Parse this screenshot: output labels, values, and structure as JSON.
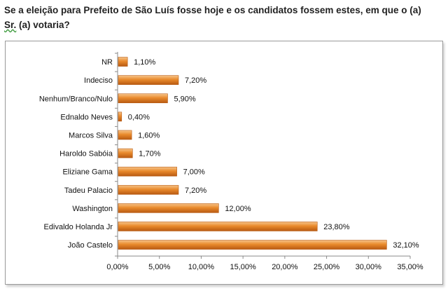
{
  "question": {
    "line1": "Se a eleição para Prefeito de São Luís fosse hoje e os candidatos fossem estes, em que o (a)",
    "line2_sr": "Sr.",
    "line2_rest": " (a) votaria?"
  },
  "colors": {
    "bar_light": "#f6c48a",
    "bar_mid": "#e98a2c",
    "bar_dark": "#b85a12",
    "axis": "#8a8a8a"
  },
  "chart_data": {
    "type": "bar",
    "orientation": "horizontal",
    "categories": [
      "NR",
      "Indeciso",
      "Nenhum/Branco/Nulo",
      "Ednaldo Neves",
      "Marcos Silva",
      "Haroldo Sabóia",
      "Eliziane Gama",
      "Tadeu Palacio",
      "Washington",
      "Edivaldo Holanda Jr",
      "João Castelo"
    ],
    "values": [
      1.1,
      7.2,
      5.9,
      0.4,
      1.6,
      1.7,
      7.0,
      7.2,
      12.0,
      23.8,
      32.1
    ],
    "value_labels": [
      "1,10%",
      "7,20%",
      "5,90%",
      "0,40%",
      "1,60%",
      "1,70%",
      "7,00%",
      "7,20%",
      "12,00%",
      "23,80%",
      "32,10%"
    ],
    "xlim": [
      0,
      35
    ],
    "xticks": [
      0,
      5,
      10,
      15,
      20,
      25,
      30,
      35
    ],
    "xtick_labels": [
      "0,00%",
      "5,00%",
      "10,00%",
      "15,00%",
      "20,00%",
      "25,00%",
      "30,00%",
      "35,00%"
    ],
    "grid": false,
    "legend": "none",
    "title": "",
    "xlabel": "",
    "ylabel": ""
  }
}
